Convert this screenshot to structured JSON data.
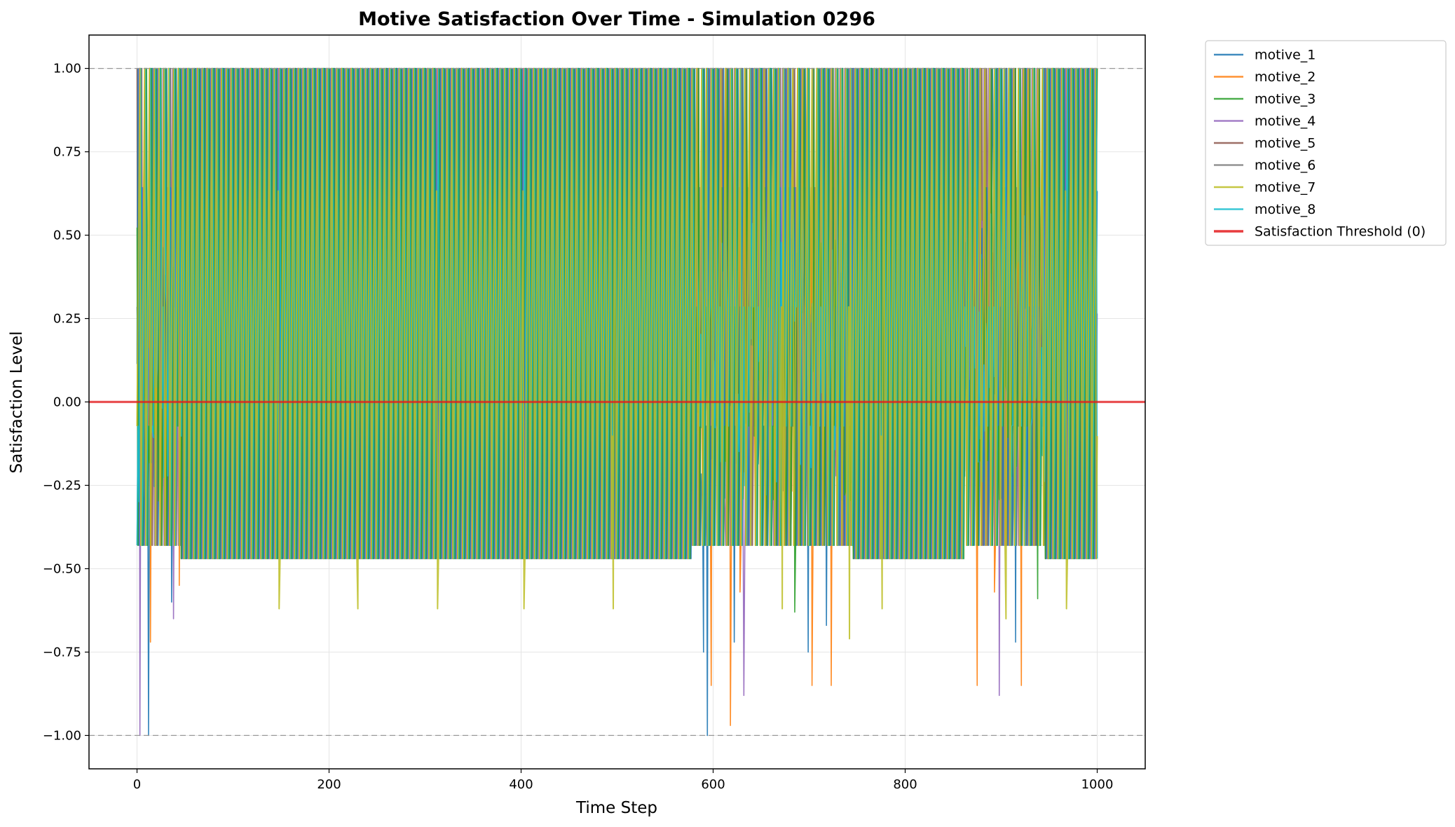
{
  "chart_data": {
    "type": "line",
    "title": "Motive Satisfaction Over Time - Simulation 0296",
    "xlabel": "Time Step",
    "ylabel": "Satisfaction Level",
    "xlim": [
      -50,
      1050
    ],
    "ylim": [
      -1.1,
      1.1
    ],
    "xticks": [
      0,
      200,
      400,
      600,
      800,
      1000
    ],
    "xtick_labels": [
      "0",
      "200",
      "400",
      "600",
      "800",
      "1000"
    ],
    "yticks": [
      -1.0,
      -0.75,
      -0.5,
      -0.25,
      0.0,
      0.25,
      0.5,
      0.75,
      1.0
    ],
    "ytick_labels": [
      "−1.00",
      "−0.75",
      "−0.50",
      "−0.25",
      "0.00",
      "0.25",
      "0.50",
      "0.75",
      "1.00"
    ],
    "grid": true,
    "legend_position": "outside right, top",
    "series": [
      {
        "name": "motive_1",
        "color": "#1f77b4"
      },
      {
        "name": "motive_2",
        "color": "#ff7f0e"
      },
      {
        "name": "motive_3",
        "color": "#2ca02c"
      },
      {
        "name": "motive_4",
        "color": "#9467bd"
      },
      {
        "name": "motive_5",
        "color": "#8c564b"
      },
      {
        "name": "motive_6",
        "color": "#7f7f7f"
      },
      {
        "name": "motive_7",
        "color": "#bcbd22"
      },
      {
        "name": "motive_8",
        "color": "#17becf"
      }
    ],
    "oscillation": {
      "steps": [
        0,
        1000
      ],
      "upper": 1.0,
      "lower": -0.47,
      "period_steps": 5,
      "volatile_windows": [
        [
          0,
          45
        ],
        [
          578,
          745
        ],
        [
          862,
          945
        ]
      ],
      "volatile_lower": -0.43
    },
    "dips": [
      {
        "series": "motive_1",
        "x": 12,
        "y": -1.0
      },
      {
        "series": "motive_4",
        "x": 3,
        "y": -1.0
      },
      {
        "series": "motive_2",
        "x": 14,
        "y": -0.72
      },
      {
        "series": "motive_4",
        "x": 38,
        "y": -0.65
      },
      {
        "series": "motive_1",
        "x": 36,
        "y": -0.6
      },
      {
        "series": "motive_2",
        "x": 44,
        "y": -0.55
      },
      {
        "series": "motive_7",
        "x": 148,
        "y": -0.62
      },
      {
        "series": "motive_7",
        "x": 230,
        "y": -0.62
      },
      {
        "series": "motive_7",
        "x": 313,
        "y": -0.62
      },
      {
        "series": "motive_7",
        "x": 403,
        "y": -0.62
      },
      {
        "series": "motive_7",
        "x": 496,
        "y": -0.62
      },
      {
        "series": "motive_1",
        "x": 590,
        "y": -0.75
      },
      {
        "series": "motive_1",
        "x": 594,
        "y": -1.0
      },
      {
        "series": "motive_2",
        "x": 598,
        "y": -0.85
      },
      {
        "series": "motive_2",
        "x": 618,
        "y": -0.97
      },
      {
        "series": "motive_1",
        "x": 622,
        "y": -0.72
      },
      {
        "series": "motive_2",
        "x": 628,
        "y": -0.57
      },
      {
        "series": "motive_4",
        "x": 632,
        "y": -0.88
      },
      {
        "series": "motive_7",
        "x": 672,
        "y": -0.62
      },
      {
        "series": "motive_3",
        "x": 685,
        "y": -0.63
      },
      {
        "series": "motive_1",
        "x": 699,
        "y": -0.75
      },
      {
        "series": "motive_2",
        "x": 703,
        "y": -0.85
      },
      {
        "series": "motive_1",
        "x": 718,
        "y": -0.67
      },
      {
        "series": "motive_2",
        "x": 723,
        "y": -0.85
      },
      {
        "series": "motive_7",
        "x": 742,
        "y": -0.71
      },
      {
        "series": "motive_7",
        "x": 776,
        "y": -0.62
      },
      {
        "series": "motive_2",
        "x": 875,
        "y": -0.85
      },
      {
        "series": "motive_2",
        "x": 893,
        "y": -0.57
      },
      {
        "series": "motive_4",
        "x": 898,
        "y": -0.88
      },
      {
        "series": "motive_7",
        "x": 905,
        "y": -0.65
      },
      {
        "series": "motive_1",
        "x": 915,
        "y": -0.72
      },
      {
        "series": "motive_2",
        "x": 921,
        "y": -0.85
      },
      {
        "series": "motive_3",
        "x": 938,
        "y": -0.59
      },
      {
        "series": "motive_7",
        "x": 968,
        "y": -0.62
      }
    ],
    "threshold": {
      "name": "Satisfaction Threshold (0)",
      "y": 0.0,
      "color": "#e41a1c"
    },
    "reference_lines": [
      1.0,
      -1.0
    ]
  }
}
